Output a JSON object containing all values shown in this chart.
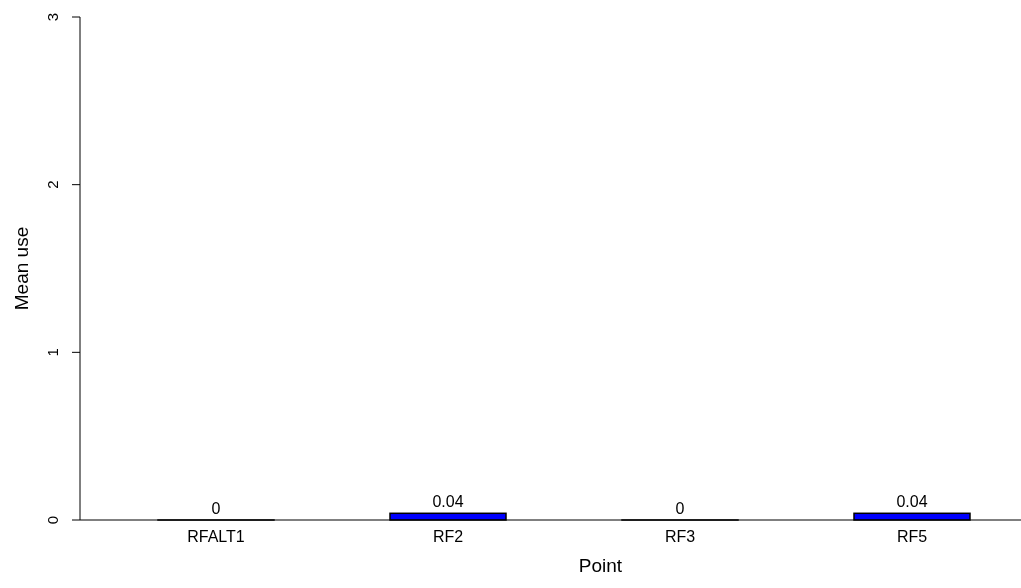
{
  "chart_data": {
    "type": "bar",
    "xlabel": "Point",
    "ylabel": "Mean use",
    "categories": [
      "RFALT1",
      "RF2",
      "RF3",
      "RF5"
    ],
    "values": [
      0,
      0.04,
      0,
      0.04
    ],
    "color": "#0000ff",
    "ylim": [
      0,
      3
    ],
    "yticks": [
      0,
      1,
      2,
      3
    ],
    "data_labels": true,
    "grid": false
  }
}
